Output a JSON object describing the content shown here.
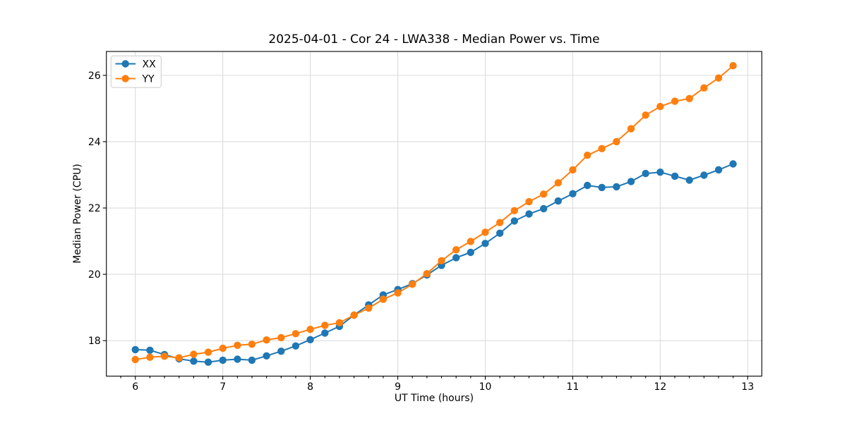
{
  "chart_data": {
    "type": "line",
    "title": "2025-04-01 - Cor 24 - LWA338 - Median Power vs. Time",
    "xlabel": "UT Time (hours)",
    "ylabel": "Median Power (CPU)",
    "x": [
      6.0,
      6.167,
      6.333,
      6.5,
      6.667,
      6.833,
      7.0,
      7.167,
      7.333,
      7.5,
      7.667,
      7.833,
      8.0,
      8.167,
      8.333,
      8.5,
      8.667,
      8.833,
      9.0,
      9.167,
      9.333,
      9.5,
      9.667,
      9.833,
      10.0,
      10.167,
      10.333,
      10.5,
      10.667,
      10.833,
      11.0,
      11.167,
      11.333,
      11.5,
      11.667,
      11.833,
      12.0,
      12.167,
      12.333,
      12.5,
      12.667,
      12.833
    ],
    "series": [
      {
        "name": "XX",
        "color": "#1f77b4",
        "marker": "circle",
        "values": [
          17.73,
          17.71,
          17.58,
          17.45,
          17.38,
          17.35,
          17.41,
          17.44,
          17.41,
          17.54,
          17.68,
          17.84,
          18.03,
          18.23,
          18.43,
          18.77,
          19.08,
          19.38,
          19.54,
          19.72,
          19.98,
          20.27,
          20.5,
          20.66,
          20.93,
          21.24,
          21.61,
          21.82,
          21.98,
          22.21,
          22.43,
          22.68,
          22.62,
          22.64,
          22.8,
          23.04,
          23.08,
          22.96,
          22.84,
          22.99,
          23.15,
          23.33
        ]
      },
      {
        "name": "YY",
        "color": "#ff7f0e",
        "marker": "circle",
        "values": [
          17.43,
          17.5,
          17.53,
          17.48,
          17.59,
          17.65,
          17.77,
          17.86,
          17.89,
          18.02,
          18.09,
          18.21,
          18.34,
          18.46,
          18.54,
          18.77,
          18.98,
          19.25,
          19.44,
          19.7,
          20.02,
          20.41,
          20.74,
          20.99,
          21.27,
          21.56,
          21.92,
          22.19,
          22.42,
          22.76,
          23.15,
          23.59,
          23.79,
          24.0,
          24.39,
          24.8,
          25.06,
          25.22,
          25.3,
          25.62,
          25.92,
          26.29
        ]
      }
    ],
    "xlim": [
      5.669,
      13.161
    ],
    "ylim": [
      16.93,
      26.72
    ],
    "xticks": [
      6,
      7,
      8,
      9,
      10,
      11,
      12,
      13
    ],
    "yticks": [
      18,
      20,
      22,
      24,
      26
    ],
    "x_minor_ticks_per_unit": 6,
    "grid": true,
    "legend": {
      "position": "upper left",
      "entries": [
        "XX",
        "YY"
      ]
    }
  }
}
